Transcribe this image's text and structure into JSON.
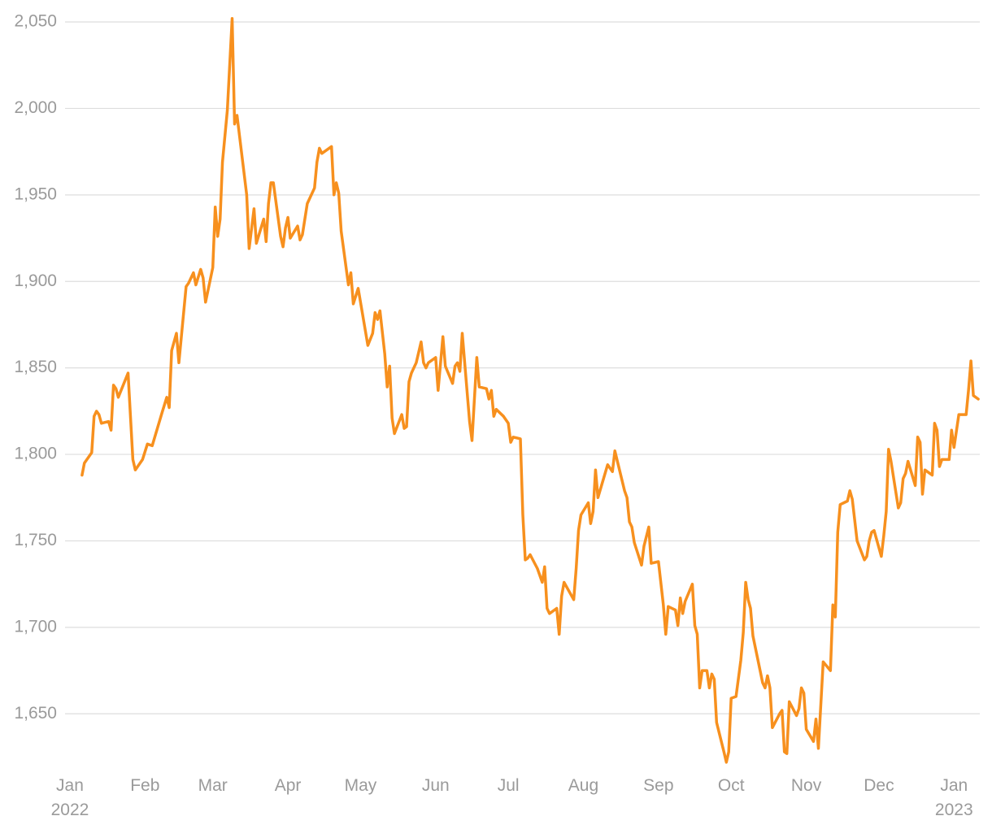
{
  "chart_data": {
    "type": "line",
    "color": "#f7901e",
    "grid": true,
    "x": [
      5,
      6,
      9,
      10,
      11,
      12,
      13,
      16,
      17,
      18,
      19,
      20,
      24,
      26,
      27,
      30,
      32,
      34,
      38,
      40,
      41,
      42,
      44,
      45,
      48,
      49,
      51,
      52,
      54,
      55,
      56,
      59,
      60,
      61,
      62,
      63,
      65,
      67,
      68,
      69,
      73,
      74,
      76,
      77,
      80,
      81,
      82,
      83,
      84,
      87,
      88,
      89,
      90,
      91,
      94,
      95,
      96,
      98,
      101,
      102,
      103,
      104,
      108,
      109,
      110,
      111,
      112,
      115,
      116,
      117,
      119,
      123,
      125,
      126,
      127,
      128,
      130,
      131,
      132,
      133,
      134,
      137,
      138,
      139,
      140,
      141,
      143,
      145,
      146,
      147,
      148,
      151,
      152,
      154,
      155,
      158,
      159,
      160,
      161,
      162,
      165,
      166,
      168,
      169,
      172,
      173,
      174,
      175,
      176,
      179,
      181,
      182,
      183,
      186,
      187,
      188,
      189,
      190,
      193,
      195,
      196,
      197,
      198,
      201,
      202,
      203,
      204,
      208,
      209,
      210,
      211,
      214,
      215,
      216,
      217,
      218,
      222,
      224,
      225,
      229,
      230,
      231,
      232,
      233,
      236,
      237,
      239,
      240,
      243,
      245,
      246,
      247,
      250,
      251,
      252,
      253,
      254,
      257,
      258,
      259,
      260,
      261,
      263,
      264,
      265,
      266,
      267,
      270,
      271,
      272,
      273,
      275,
      277,
      278,
      279,
      280,
      281,
      282,
      286,
      287,
      288,
      289,
      290,
      293,
      294,
      295,
      296,
      297,
      300,
      301,
      302,
      303,
      304,
      307,
      308,
      309,
      311,
      314,
      315,
      316,
      317,
      318,
      321,
      322,
      323,
      325,
      328,
      329,
      330,
      331,
      332,
      335,
      336,
      337,
      338,
      339,
      342,
      343,
      344,
      345,
      346,
      349,
      350,
      351,
      352,
      353,
      356,
      357,
      358,
      359,
      360,
      363,
      364,
      365,
      367,
      370,
      371,
      372,
      373,
      375
    ],
    "values": [
      1788,
      1795,
      1801,
      1822,
      1825,
      1823,
      1818,
      1819,
      1814,
      1840,
      1838,
      1833,
      1847,
      1797,
      1791,
      1797,
      1806,
      1805,
      1824,
      1833,
      1827,
      1860,
      1870,
      1853,
      1897,
      1899,
      1905,
      1898,
      1907,
      1902,
      1888,
      1908,
      1943,
      1926,
      1936,
      1969,
      1999,
      2052,
      1991,
      1996,
      1950,
      1919,
      1942,
      1922,
      1936,
      1923,
      1945,
      1957,
      1957,
      1926,
      1920,
      1931,
      1937,
      1925,
      1932,
      1924,
      1927,
      1945,
      1954,
      1969,
      1977,
      1974,
      1978,
      1950,
      1957,
      1951,
      1929,
      1898,
      1905,
      1887,
      1896,
      1863,
      1870,
      1882,
      1878,
      1883,
      1858,
      1839,
      1851,
      1821,
      1812,
      1823,
      1815,
      1816,
      1842,
      1847,
      1853,
      1865,
      1853,
      1850,
      1853,
      1856,
      1837,
      1868,
      1851,
      1841,
      1851,
      1853,
      1848,
      1870,
      1819,
      1808,
      1856,
      1839,
      1838,
      1832,
      1837,
      1822,
      1826,
      1822,
      1818,
      1807,
      1810,
      1809,
      1765,
      1739,
      1740,
      1742,
      1734,
      1726,
      1735,
      1711,
      1708,
      1711,
      1696,
      1718,
      1726,
      1716,
      1734,
      1756,
      1765,
      1772,
      1760,
      1767,
      1791,
      1775,
      1794,
      1790,
      1802,
      1779,
      1775,
      1761,
      1758,
      1749,
      1736,
      1747,
      1758,
      1737,
      1738,
      1713,
      1696,
      1712,
      1710,
      1701,
      1717,
      1708,
      1715,
      1725,
      1701,
      1696,
      1665,
      1675,
      1675,
      1665,
      1673,
      1670,
      1645,
      1628,
      1622,
      1628,
      1659,
      1660,
      1681,
      1697,
      1726,
      1716,
      1711,
      1695,
      1668,
      1665,
      1672,
      1665,
      1642,
      1650,
      1652,
      1628,
      1627,
      1657,
      1649,
      1653,
      1665,
      1662,
      1641,
      1634,
      1647,
      1630,
      1680,
      1675,
      1713,
      1706,
      1755,
      1771,
      1773,
      1779,
      1774,
      1750,
      1739,
      1741,
      1750,
      1755,
      1756,
      1741,
      1753,
      1767,
      1803,
      1796,
      1769,
      1772,
      1786,
      1789,
      1796,
      1782,
      1810,
      1807,
      1777,
      1791,
      1788,
      1818,
      1814,
      1793,
      1797,
      1797,
      1814,
      1804,
      1823,
      1823,
      1837,
      1854,
      1834,
      1832
    ],
    "xlim": [
      -2,
      378
    ],
    "xticks": [
      {
        "value": 0,
        "label": "Jan\n2022"
      },
      {
        "value": 31,
        "label": "Feb"
      },
      {
        "value": 59,
        "label": "Mar"
      },
      {
        "value": 90,
        "label": "Apr"
      },
      {
        "value": 120,
        "label": "May"
      },
      {
        "value": 151,
        "label": "Jun"
      },
      {
        "value": 181,
        "label": "Jul"
      },
      {
        "value": 212,
        "label": "Aug"
      },
      {
        "value": 243,
        "label": "Sep"
      },
      {
        "value": 273,
        "label": "Oct"
      },
      {
        "value": 304,
        "label": "Nov"
      },
      {
        "value": 334,
        "label": "Dec"
      },
      {
        "value": 365,
        "label": "Jan\n2023"
      }
    ],
    "ylim": [
      1621,
      2058
    ],
    "yticks": [
      {
        "value": 1650,
        "label": "1,650"
      },
      {
        "value": 1700,
        "label": "1,700"
      },
      {
        "value": 1750,
        "label": "1,750"
      },
      {
        "value": 1800,
        "label": "1,800"
      },
      {
        "value": 1850,
        "label": "1,850"
      },
      {
        "value": 1900,
        "label": "1,900"
      },
      {
        "value": 1950,
        "label": "1,950"
      },
      {
        "value": 2000,
        "label": "2,000"
      },
      {
        "value": 2050,
        "label": "2,050"
      }
    ]
  }
}
